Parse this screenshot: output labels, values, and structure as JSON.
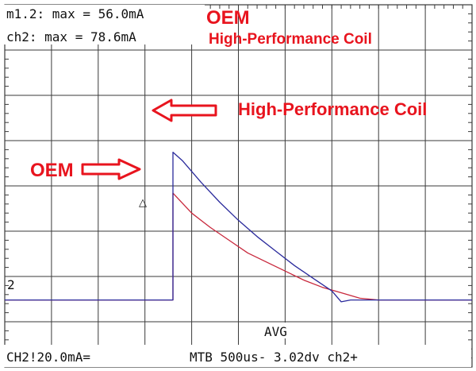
{
  "chart_data": {
    "type": "line",
    "title": "",
    "xlabel": "",
    "ylabel": "",
    "grid": true,
    "x_unit": "us",
    "y_unit": "mA",
    "ylim": [
      -40,
      160
    ],
    "xlim": [
      -1800,
      3200
    ],
    "measurements": {
      "line1": "m1.2: max = 56.0mA",
      "line2": "ch2:  max = 78.6mA"
    },
    "status": {
      "mode": "AVG",
      "channel": "CH2!20.0mA=",
      "timebase": "MTB 500us- 3.02dv ch2+"
    },
    "ground_marker": "2",
    "trigger_marker": "△",
    "annotations": {
      "legend_oem": "OEM",
      "legend_hp": "High-Performance Coil",
      "arrow_hp": "High-Performance Coil",
      "arrow_oem": "OEM"
    },
    "colors": {
      "oem": "#c8283c",
      "hp": "#2a2a9c",
      "annotation": "#e8141e",
      "grid": "#3a3a3a"
    },
    "series": [
      {
        "id": "oem",
        "name": "OEM",
        "x": [
          -1800,
          0,
          0,
          200,
          400,
          600,
          800,
          1000,
          1200,
          1400,
          1600,
          1800,
          2000,
          2200,
          3200
        ],
        "y": [
          -3,
          -3,
          56,
          45,
          37,
          30,
          23,
          18,
          13,
          8,
          4,
          1,
          -2,
          -3,
          -3
        ]
      },
      {
        "id": "hp",
        "name": "High-Performance Coil",
        "x": [
          -1800,
          0,
          0,
          100,
          300,
          500,
          700,
          900,
          1100,
          1300,
          1500,
          1700,
          1800,
          1900,
          2000,
          3200
        ],
        "y": [
          -3,
          -3,
          78.6,
          74,
          62,
          51,
          41,
          32,
          24,
          16,
          9,
          2,
          -4,
          -3,
          -3,
          -3
        ]
      }
    ]
  }
}
